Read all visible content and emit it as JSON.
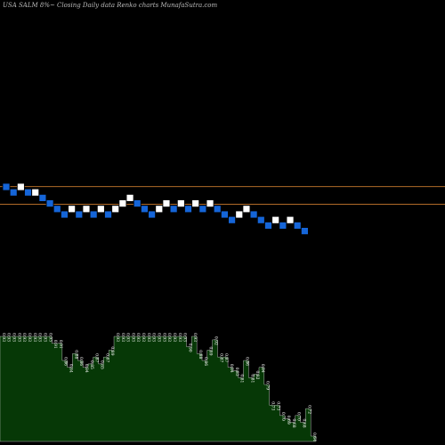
{
  "title": "USA SALM 8%~  Closing Daily data  Renko  charts MunafaSutra.com",
  "colors": {
    "background": "#000000",
    "up_brick": "#ffffff",
    "down_brick": "#1565d8",
    "brick_border": "#000000",
    "resistance_line": "#c97a2e",
    "volume_fill": "#063806",
    "volume_edge": "#e0e0e0"
  },
  "chart_data": {
    "type": "renko",
    "title": "USA SALM 8%~  Closing Daily data  Renko  charts MunafaSutra.com",
    "bricks": [
      {
        "dir": "down",
        "level": 0
      },
      {
        "dir": "down",
        "level": -1
      },
      {
        "dir": "up",
        "level": 0
      },
      {
        "dir": "down",
        "level": -1
      },
      {
        "dir": "up",
        "level": -1
      },
      {
        "dir": "down",
        "level": -2
      },
      {
        "dir": "down",
        "level": -3
      },
      {
        "dir": "down",
        "level": -4
      },
      {
        "dir": "down",
        "level": -5
      },
      {
        "dir": "up",
        "level": -4
      },
      {
        "dir": "down",
        "level": -5
      },
      {
        "dir": "up",
        "level": -4
      },
      {
        "dir": "down",
        "level": -5
      },
      {
        "dir": "up",
        "level": -4
      },
      {
        "dir": "down",
        "level": -5
      },
      {
        "dir": "up",
        "level": -4
      },
      {
        "dir": "up",
        "level": -3
      },
      {
        "dir": "up",
        "level": -2
      },
      {
        "dir": "down",
        "level": -3
      },
      {
        "dir": "down",
        "level": -4
      },
      {
        "dir": "down",
        "level": -5
      },
      {
        "dir": "up",
        "level": -4
      },
      {
        "dir": "up",
        "level": -3
      },
      {
        "dir": "down",
        "level": -4
      },
      {
        "dir": "up",
        "level": -3
      },
      {
        "dir": "down",
        "level": -4
      },
      {
        "dir": "up",
        "level": -3
      },
      {
        "dir": "down",
        "level": -4
      },
      {
        "dir": "up",
        "level": -3
      },
      {
        "dir": "down",
        "level": -4
      },
      {
        "dir": "down",
        "level": -5
      },
      {
        "dir": "down",
        "level": -6
      },
      {
        "dir": "up",
        "level": -5
      },
      {
        "dir": "up",
        "level": -4
      },
      {
        "dir": "down",
        "level": -5
      },
      {
        "dir": "down",
        "level": -6
      },
      {
        "dir": "down",
        "level": -7
      },
      {
        "dir": "up",
        "level": -6
      },
      {
        "dir": "down",
        "level": -7
      },
      {
        "dir": "up",
        "level": -6
      },
      {
        "dir": "down",
        "level": -7
      },
      {
        "dir": "down",
        "level": -8
      }
    ],
    "resistance_levels": [
      -0.6,
      -3.8
    ],
    "volume_labels": [
      "0.93",
      "0.93",
      "0.93",
      "0.93",
      "0.93",
      "0.93",
      "0.93",
      "0.93",
      "0.93",
      "0.93",
      "0.91",
      "0.91",
      "0.86",
      "0.84",
      "0.88",
      "0.86",
      "0.84",
      "0.85",
      "0.87",
      "0.85",
      "0.87",
      "0.89",
      "0.93",
      "0.93",
      "0.93",
      "0.93",
      "0.93",
      "0.93",
      "0.93",
      "0.93",
      "0.93",
      "0.93",
      "0.93",
      "0.93",
      "0.93",
      "0.93",
      "0.90",
      "0.93",
      "0.88",
      "0.86",
      "0.89",
      "0.92",
      "0.87",
      "0.87",
      "0.84",
      "0.83",
      "0.81",
      "0.86",
      "0.81",
      "0.82",
      "0.84",
      "0.79",
      "0.73",
      "0.73",
      "0.70",
      "0.69",
      "0.68",
      "0.70",
      "0.68",
      "0.72",
      "0.64"
    ],
    "volume_values": [
      0.93,
      0.93,
      0.93,
      0.93,
      0.93,
      0.93,
      0.93,
      0.93,
      0.93,
      0.93,
      0.91,
      0.91,
      0.86,
      0.84,
      0.88,
      0.86,
      0.84,
      0.85,
      0.87,
      0.85,
      0.87,
      0.89,
      0.93,
      0.93,
      0.93,
      0.93,
      0.93,
      0.93,
      0.93,
      0.93,
      0.93,
      0.93,
      0.93,
      0.93,
      0.93,
      0.93,
      0.9,
      0.93,
      0.88,
      0.86,
      0.89,
      0.92,
      0.87,
      0.87,
      0.84,
      0.83,
      0.81,
      0.86,
      0.81,
      0.82,
      0.84,
      0.79,
      0.73,
      0.73,
      0.7,
      0.69,
      0.68,
      0.7,
      0.68,
      0.72,
      0.64
    ],
    "grid": false
  }
}
